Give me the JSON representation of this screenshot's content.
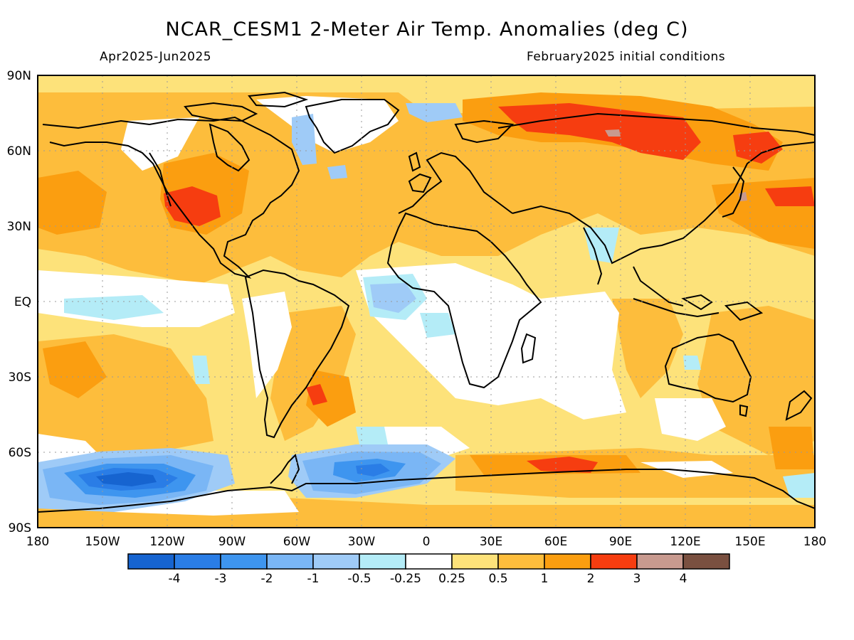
{
  "title": "NCAR_CESM1 2-Meter Air Temp. Anomalies (deg C)",
  "subtitle_left": "Apr2025-Jun2025",
  "subtitle_right": "February2025 initial conditions",
  "lat_labels": [
    "90N",
    "60N",
    "30N",
    "EQ",
    "30S",
    "60S",
    "90S"
  ],
  "lon_labels": [
    "180",
    "150W",
    "120W",
    "90W",
    "60W",
    "30W",
    "0",
    "30E",
    "60E",
    "90E",
    "120E",
    "150E",
    "180"
  ],
  "colorbar": {
    "colors": [
      "#1664d0",
      "#2a7de6",
      "#3e95ef",
      "#7ab6f5",
      "#9fcbf7",
      "#b4ecf7",
      "#ffffff",
      "#fde27a",
      "#fdbd3c",
      "#fb9e10",
      "#f63d10",
      "#c89a8f",
      "#7a5040"
    ],
    "labels": [
      "-4",
      "-3",
      "-2",
      "-1",
      "-0.5",
      "-0.25",
      "0.25",
      "0.5",
      "1",
      "2",
      "3",
      "4"
    ]
  },
  "colors": {
    "ocean_neutral": "#ffffff",
    "warm_light": "#fde27a",
    "warm_mid": "#fdbd3c",
    "warm_strong": "#fb9e10",
    "hot": "#f63d10",
    "cool_light": "#b4ecf7",
    "cool_mid": "#9fcbf7",
    "cold": "#3e95ef",
    "coldest": "#1664d0"
  }
}
